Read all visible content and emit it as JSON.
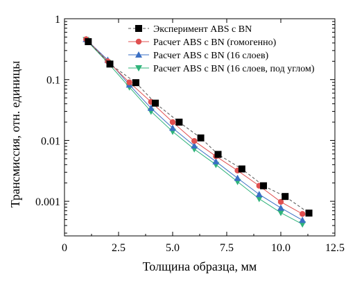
{
  "chart_data": {
    "type": "scatter",
    "title": "",
    "xlabel": "Толщина образца, мм",
    "ylabel": "Трансмиссия, отн. единицы",
    "xlim": [
      0,
      12.5
    ],
    "ylim": [
      0.00027,
      1
    ],
    "yscale": "log",
    "xticks": [
      0,
      2.5,
      5.0,
      7.5,
      10.0,
      12.5
    ],
    "xtick_labels": [
      "0",
      "2.5",
      "5.0",
      "7.5",
      "10.0",
      "12.5"
    ],
    "yticks": [
      1,
      0.1,
      0.01,
      0.001
    ],
    "ytick_labels": [
      "1",
      "0.1",
      "0.01",
      "0.001"
    ],
    "grid": false,
    "legend_position": "top-right",
    "series": [
      {
        "name": "Эксперимент ABS с BN",
        "marker": "square",
        "color": "#000000",
        "line_color": "#555555",
        "line_style": "dashed",
        "x": [
          1.1,
          2.1,
          3.3,
          4.2,
          5.3,
          6.3,
          7.1,
          8.2,
          9.2,
          10.2,
          11.3
        ],
        "y": [
          0.42,
          0.18,
          0.089,
          0.041,
          0.02,
          0.011,
          0.0059,
          0.0034,
          0.0018,
          0.0012,
          0.00064
        ]
      },
      {
        "name": "Расчет ABS с BN (гомогенно)",
        "marker": "circle",
        "color": "#e05050",
        "line_color": "#e05050",
        "line_style": "solid",
        "x": [
          1.0,
          2.0,
          3.0,
          4.0,
          5.0,
          6.0,
          7.0,
          8.0,
          9.0,
          10.0,
          11.0
        ],
        "y": [
          0.46,
          0.2,
          0.09,
          0.043,
          0.02,
          0.0098,
          0.0055,
          0.0032,
          0.0018,
          0.00098,
          0.00062
        ]
      },
      {
        "name": "Расчет ABS с BN (16 слоев)",
        "marker": "triangle-up",
        "color": "#3a6fc4",
        "line_color": "#3a6fc4",
        "line_style": "solid",
        "x": [
          1.0,
          2.0,
          3.0,
          4.0,
          5.0,
          6.0,
          7.0,
          8.0,
          9.0,
          10.0,
          11.0
        ],
        "y": [
          0.46,
          0.21,
          0.082,
          0.034,
          0.016,
          0.0082,
          0.0045,
          0.0024,
          0.0013,
          0.00078,
          0.00049
        ]
      },
      {
        "name": "Расчет ABS с BN (16 слоев, под углом)",
        "marker": "triangle-down",
        "color": "#2fb37a",
        "line_color": "#2fb37a",
        "line_style": "solid",
        "x": [
          1.0,
          2.0,
          3.0,
          4.0,
          5.0,
          6.0,
          7.0,
          8.0,
          9.0,
          10.0,
          11.0
        ],
        "y": [
          0.45,
          0.19,
          0.075,
          0.03,
          0.014,
          0.0072,
          0.004,
          0.0021,
          0.0011,
          0.00065,
          0.00042
        ]
      }
    ]
  }
}
